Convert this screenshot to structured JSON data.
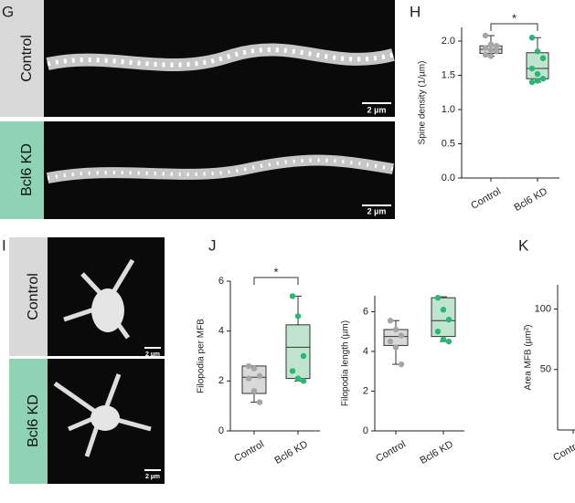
{
  "figure": {
    "panels": [
      "G",
      "H",
      "I",
      "J",
      "K"
    ],
    "images": [
      {
        "condition": "Control",
        "scale_bar": "2 µm"
      },
      {
        "condition": "Bcl6 KD",
        "scale_bar": "2 µm"
      },
      {
        "condition": "Control",
        "scale_bar": "2 µm"
      },
      {
        "condition": "Bcl6 KD",
        "scale_bar": "2 µm"
      }
    ]
  },
  "chart_data": [
    {
      "type": "box",
      "ylabel": "Spine density (1/µm)",
      "categories": [
        "Control",
        "Bcl6 KD"
      ],
      "ylim": [
        0,
        2.2
      ],
      "yticks": [
        {
          "value": 0,
          "label": "0.0"
        },
        0.5,
        {
          "value": 1,
          "label": "1.0"
        },
        1.5,
        {
          "value": 2,
          "label": "2.0"
        }
      ],
      "boxes": [
        {
          "min": 1.78,
          "q1": 1.82,
          "median": 1.88,
          "q3": 1.93,
          "max": 2.08,
          "color": "#d9d9d9",
          "point_color": "#a6a6a6",
          "points": [
            2.08,
            1.95,
            1.93,
            1.9,
            1.87,
            1.85,
            1.8,
            1.78
          ]
        },
        {
          "min": 1.4,
          "q1": 1.45,
          "median": 1.6,
          "q3": 1.83,
          "max": 2.05,
          "color": "#bfe5cf",
          "point_color": "#2bb673",
          "points": [
            2.05,
            1.85,
            1.75,
            1.6,
            1.52,
            1.45,
            1.4,
            1.42
          ]
        }
      ],
      "significance": "*"
    },
    {
      "type": "box",
      "ylabel": "Filopodia per MFB",
      "categories": [
        "Control",
        "Bcl6 KD"
      ],
      "ylim": [
        0,
        6
      ],
      "yticks": [
        0,
        2,
        4,
        6
      ],
      "boxes": [
        {
          "min": 1.15,
          "q1": 1.5,
          "median": 2.15,
          "q3": 2.6,
          "max": 2.6,
          "color": "#d9d9d9",
          "point_color": "#a6a6a6",
          "points": [
            2.6,
            2.5,
            2.2,
            2.1,
            1.6,
            1.15
          ]
        },
        {
          "min": 2.0,
          "q1": 2.1,
          "median": 3.35,
          "q3": 4.25,
          "max": 5.4,
          "color": "#bfe5cf",
          "point_color": "#2bb673",
          "points": [
            5.4,
            4.6,
            3.0,
            2.4,
            2.1,
            2.0
          ]
        }
      ],
      "significance": "*"
    },
    {
      "type": "box",
      "ylabel": "Filopodia length (µm)",
      "categories": [
        "Control",
        "Bcl6 KD"
      ],
      "ylim": [
        0,
        6.8
      ],
      "yticks": [
        0,
        2,
        4,
        6
      ],
      "boxes": [
        {
          "min": 3.35,
          "q1": 4.3,
          "median": 4.75,
          "q3": 5.1,
          "max": 5.55,
          "color": "#d9d9d9",
          "point_color": "#a6a6a6",
          "points": [
            5.55,
            5.1,
            4.8,
            4.5,
            4.2,
            3.35
          ]
        },
        {
          "min": 4.5,
          "q1": 4.75,
          "median": 5.55,
          "q3": 6.7,
          "max": 6.75,
          "color": "#bfe5cf",
          "point_color": "#2bb673",
          "points": [
            6.7,
            6.1,
            5.6,
            5.0,
            4.6,
            4.5
          ]
        }
      ]
    },
    {
      "type": "box",
      "ylabel": "Area MFB (µm²)",
      "categories": [
        "Control"
      ],
      "ylim": [
        0,
        120
      ],
      "yticks": [
        50,
        100
      ],
      "boxes": []
    }
  ]
}
